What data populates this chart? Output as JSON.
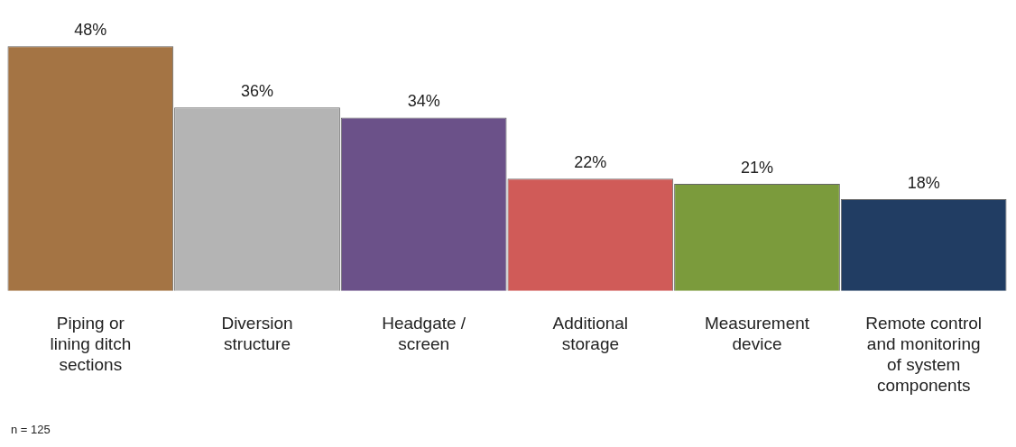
{
  "chart_data": {
    "type": "bar",
    "categories": [
      "Piping or lining ditch sections",
      "Diversion structure",
      "Headgate / screen",
      "Additional storage",
      "Measurement device",
      "Remote control and monitoring of system components"
    ],
    "values": [
      48,
      36,
      34,
      22,
      21,
      18
    ],
    "colors": [
      "#a47444",
      "#b4b4b4",
      "#6b5189",
      "#d05b58",
      "#7b9b3c",
      "#213d63"
    ],
    "value_labels": [
      "48%",
      "36%",
      "34%",
      "22%",
      "21%",
      "18%"
    ],
    "annotations": [
      "n = 125"
    ]
  }
}
